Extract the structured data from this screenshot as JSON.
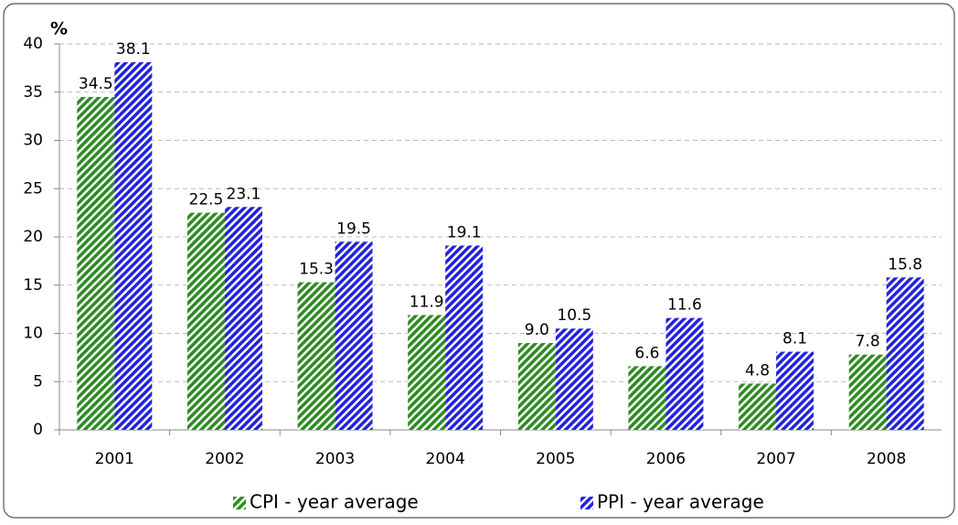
{
  "chart_data": {
    "type": "bar",
    "y_label": "%",
    "categories": [
      "2001",
      "2002",
      "2003",
      "2004",
      "2005",
      "2006",
      "2007",
      "2008"
    ],
    "series": [
      {
        "name": "CPI - year average",
        "color": "#2e8b22",
        "values": [
          34.5,
          22.5,
          15.3,
          11.9,
          9.0,
          6.6,
          4.8,
          7.8
        ],
        "value_labels": [
          "34.5",
          "22.5",
          "15.3",
          "11.9",
          "9.0",
          "6.6",
          "4.8",
          "7.8"
        ]
      },
      {
        "name": "PPI - year average",
        "color": "#2222dd",
        "values": [
          38.1,
          23.1,
          19.5,
          19.1,
          10.5,
          11.6,
          8.1,
          15.8
        ],
        "value_labels": [
          "38.1",
          "23.1",
          "19.5",
          "19.1",
          "10.5",
          "11.6",
          "8.1",
          "15.8"
        ]
      }
    ],
    "ylim": [
      0,
      40
    ],
    "yticks": [
      0,
      5,
      10,
      15,
      20,
      25,
      30,
      35,
      40
    ],
    "grid": true,
    "hatched": true,
    "legend": "bottom"
  }
}
